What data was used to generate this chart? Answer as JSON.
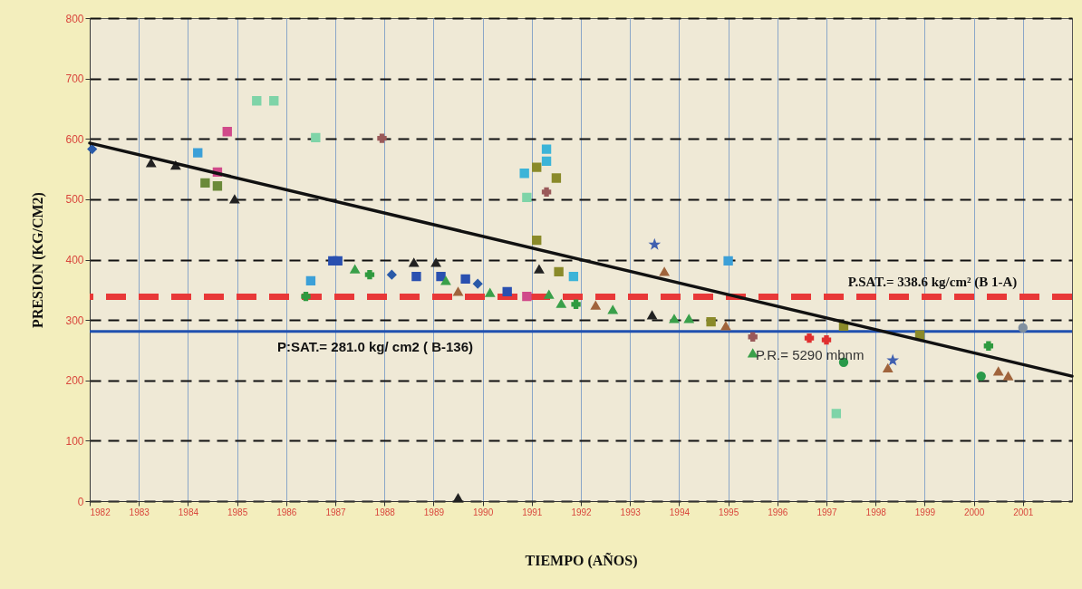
{
  "chart_data": {
    "type": "scatter",
    "xlabel": "TIEMPO (AÑOS)",
    "ylabel": "PRESION (KG/CM2)",
    "xlim": [
      1982,
      2002
    ],
    "ylim": [
      0,
      800
    ],
    "xticks": [
      1982,
      1983,
      1984,
      1985,
      1986,
      1987,
      1988,
      1989,
      1990,
      1991,
      1992,
      1993,
      1994,
      1995,
      1996,
      1997,
      1998,
      1999,
      2000,
      2001
    ],
    "yticks": [
      0,
      100,
      200,
      300,
      400,
      500,
      600,
      700,
      800
    ],
    "grid": true,
    "series": [
      {
        "color": "#2a5aa8",
        "marker": "diamond",
        "x": [
          1982.05,
          1988.15,
          1989.9
        ],
        "values": [
          583,
          375,
          360
        ]
      },
      {
        "color": "#222222",
        "marker": "triangle",
        "x": [
          1983.25,
          1983.75,
          1984.95,
          1988.6,
          1989.05,
          1991.15,
          1993.45,
          1989.5
        ],
        "values": [
          560,
          556,
          500,
          395,
          395,
          384,
          308,
          5
        ]
      },
      {
        "color": "#3ca0d8",
        "marker": "square",
        "x": [
          1984.2,
          1986.5,
          1995.0
        ],
        "values": [
          577,
          365,
          398
        ]
      },
      {
        "color": "#d04a8a",
        "marker": "square",
        "x": [
          1984.6,
          1984.8,
          1990.9
        ],
        "values": [
          545,
          612,
          339
        ]
      },
      {
        "color": "#7fd4a8",
        "marker": "square",
        "x": [
          1985.4,
          1985.75,
          1986.6,
          1990.9,
          1997.2
        ],
        "values": [
          663,
          663,
          602,
          503,
          145
        ]
      },
      {
        "color": "#6b8a3a",
        "marker": "square",
        "x": [
          1984.35,
          1984.6
        ],
        "values": [
          527,
          522
        ]
      },
      {
        "color": "#9a5a5a",
        "marker": "cross",
        "x": [
          1987.95,
          1991.3,
          1995.5
        ],
        "values": [
          601,
          512,
          272
        ]
      },
      {
        "color": "#8a8a2a",
        "marker": "square",
        "x": [
          1991.1,
          1991.5,
          1991.1,
          1991.55,
          1997.35,
          1998.9,
          1994.65
        ],
        "values": [
          553,
          535,
          432,
          380,
          290,
          275,
          297
        ]
      },
      {
        "color": "#3cb4d8",
        "marker": "square",
        "x": [
          1991.3,
          1991.3,
          1990.85,
          1991.85
        ],
        "values": [
          583,
          563,
          543,
          372
        ]
      },
      {
        "color": "#2a50b0",
        "marker": "square",
        "x": [
          1986.95,
          1987.05,
          1988.65,
          1989.15,
          1989.65,
          1990.5
        ],
        "values": [
          398,
          398,
          372,
          372,
          368,
          347
        ]
      },
      {
        "color": "#3aa04a",
        "marker": "triangle",
        "x": [
          1987.4,
          1989.25,
          1990.15,
          1991.35,
          1991.6,
          1992.65,
          1993.9,
          1994.2,
          1995.5
        ],
        "values": [
          384,
          365,
          345,
          342,
          327,
          317,
          302,
          302,
          245
        ]
      },
      {
        "color": "#2f9a3f",
        "marker": "cross",
        "x": [
          1986.4,
          1987.7,
          1991.9,
          2000.3
        ],
        "values": [
          339,
          375,
          326,
          257
        ]
      },
      {
        "color": "#a0643c",
        "marker": "triangle",
        "x": [
          1989.5,
          1992.3,
          1993.7,
          1994.95,
          1998.25,
          2000.5,
          2000.7
        ],
        "values": [
          347,
          324,
          380,
          290,
          220,
          215,
          207
        ]
      },
      {
        "color": "#e03030",
        "marker": "cross",
        "x": [
          1996.65,
          1997.0
        ],
        "values": [
          270,
          267
        ]
      },
      {
        "color": "#4060b0",
        "marker": "star",
        "x": [
          1993.5,
          1998.35
        ],
        "values": [
          425,
          233
        ]
      },
      {
        "color": "#2a9a4a",
        "marker": "circle",
        "x": [
          1997.35,
          2000.15
        ],
        "values": [
          230,
          207
        ]
      },
      {
        "color": "#8090a0",
        "marker": "circle",
        "x": [
          2001.0
        ],
        "values": [
          287
        ]
      },
      {
        "type": "line",
        "color": "#111111",
        "marker": "none",
        "line_style": "solid",
        "x": [
          1982,
          2002
        ],
        "values": [
          593,
          207
        ]
      }
    ],
    "ref_lines": [
      {
        "axis": "y",
        "value": 338.6,
        "label": "P.SAT.= 338.6 kg/cm² (B 1-A)",
        "color": "#e83838",
        "line_style": "dashed"
      },
      {
        "axis": "y",
        "value": 281.0,
        "label": "P:SAT.= 281.0 kg/ cm2 ( B-136)",
        "color": "#2050b0",
        "line_style": "solid"
      }
    ],
    "annotations": [
      "P.R.= 5290 mbnm"
    ]
  }
}
